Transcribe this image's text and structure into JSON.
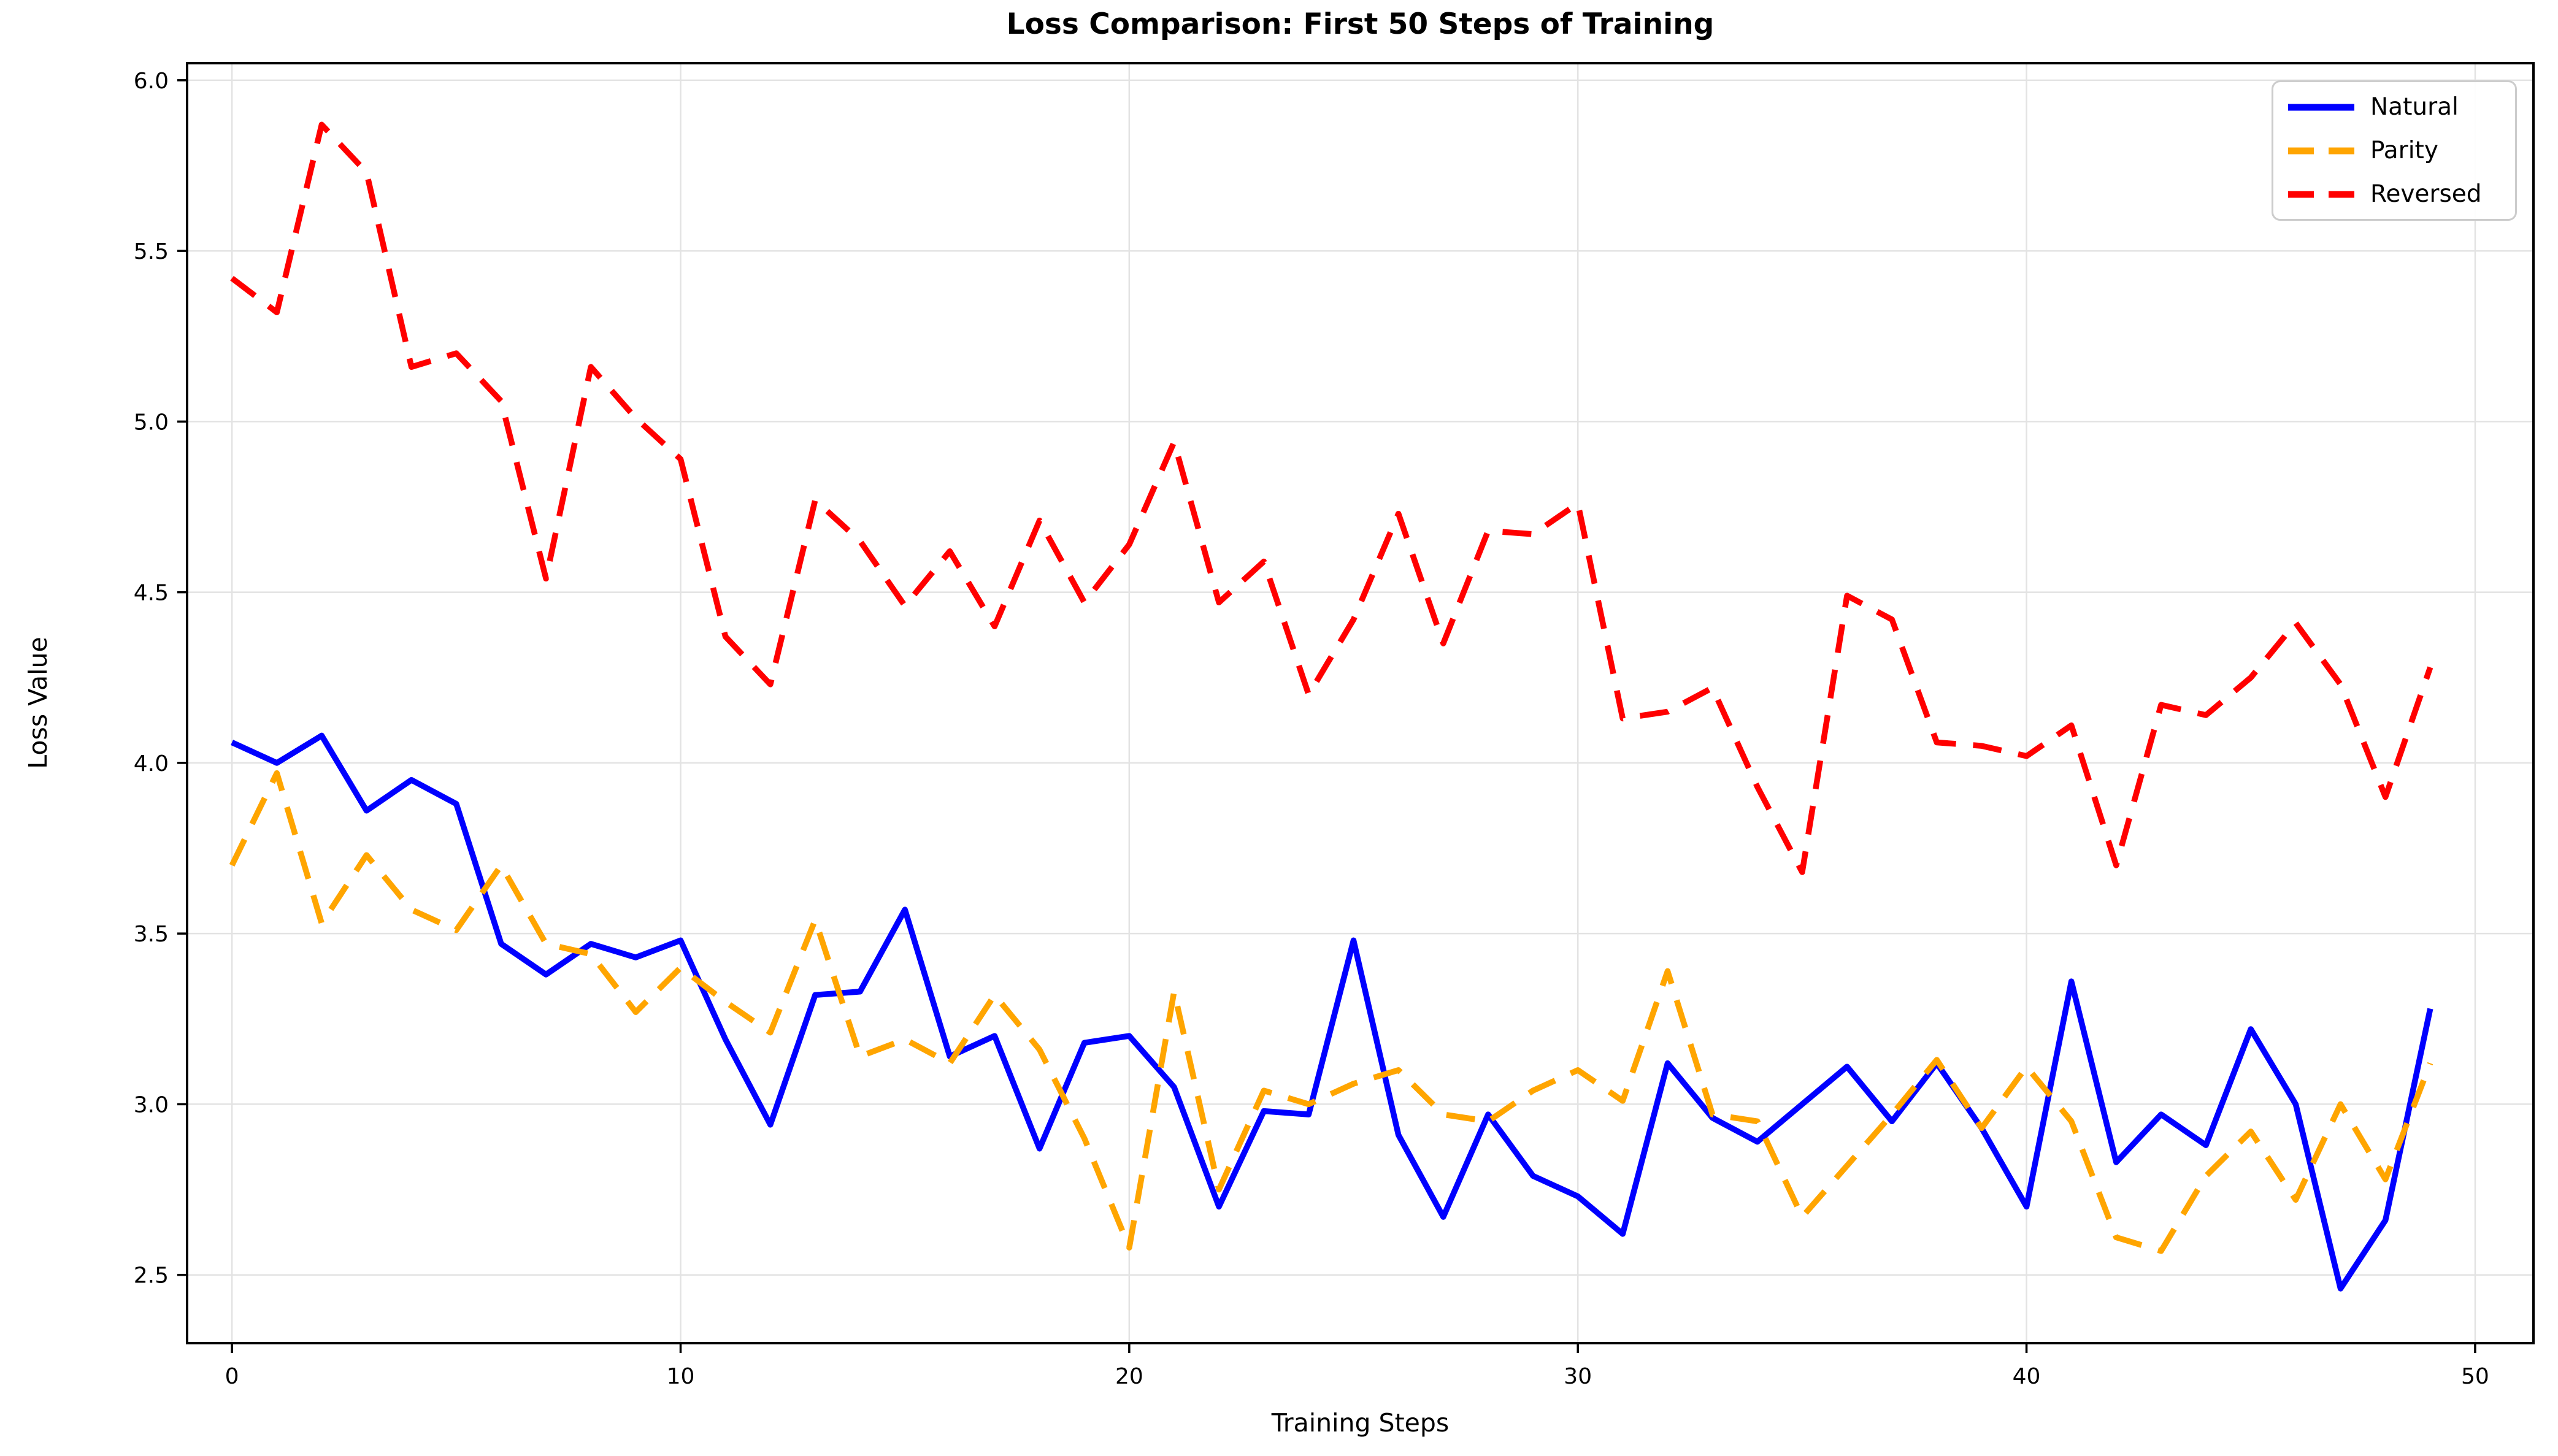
{
  "figure": {
    "title": "Loss Comparison: First 50 Steps of Training"
  },
  "chart_data": {
    "type": "line",
    "title": "Loss Comparison: First 50 Steps of Training",
    "xlabel": "Training Steps",
    "ylabel": "Loss Value",
    "grid": true,
    "legend_position": "upper right",
    "background_color": "#ffffff",
    "grid_color": "#e3e3e3",
    "xlim": [
      -1.0,
      51.3
    ],
    "ylim": [
      2.3,
      6.05
    ],
    "xticks": [
      0,
      10,
      20,
      30,
      40,
      50
    ],
    "yticks": [
      2.5,
      3.0,
      3.5,
      4.0,
      4.5,
      5.0,
      5.5,
      6.0
    ],
    "x": [
      0,
      1,
      2,
      3,
      4,
      5,
      6,
      7,
      8,
      9,
      10,
      11,
      12,
      13,
      14,
      15,
      16,
      17,
      18,
      19,
      20,
      21,
      22,
      23,
      24,
      25,
      26,
      27,
      28,
      29,
      30,
      31,
      32,
      33,
      34,
      35,
      36,
      37,
      38,
      39,
      40,
      41,
      42,
      43,
      44,
      45,
      46,
      47,
      48,
      49
    ],
    "series": [
      {
        "name": "Natural",
        "color": "#0000ff",
        "style": "solid",
        "values": [
          4.06,
          4.0,
          4.08,
          3.86,
          3.95,
          3.88,
          3.47,
          3.38,
          3.47,
          3.43,
          3.48,
          3.19,
          2.94,
          3.32,
          3.33,
          3.57,
          3.14,
          3.2,
          2.87,
          3.18,
          3.2,
          3.05,
          2.7,
          2.98,
          2.97,
          3.48,
          2.91,
          2.67,
          2.97,
          2.79,
          2.73,
          2.62,
          3.12,
          2.96,
          2.89,
          3.0,
          3.11,
          2.95,
          3.12,
          2.93,
          2.7,
          3.36,
          2.83,
          2.97,
          2.88,
          3.22,
          3.0,
          2.46,
          2.66,
          3.28
        ]
      },
      {
        "name": "Parity",
        "color": "#ffa500",
        "style": "dashed",
        "values": [
          3.7,
          3.97,
          3.53,
          3.73,
          3.57,
          3.51,
          3.7,
          3.47,
          3.44,
          3.27,
          3.4,
          3.3,
          3.21,
          3.54,
          3.14,
          3.19,
          3.12,
          3.32,
          3.16,
          2.9,
          2.58,
          3.33,
          2.75,
          3.04,
          3.0,
          3.06,
          3.1,
          2.97,
          2.95,
          3.04,
          3.1,
          3.01,
          3.39,
          2.97,
          2.95,
          2.67,
          2.82,
          2.97,
          3.13,
          2.93,
          3.11,
          2.95,
          2.61,
          2.57,
          2.79,
          2.92,
          2.72,
          3.0,
          2.78,
          3.12
        ]
      },
      {
        "name": "Reversed",
        "color": "#ff0000",
        "style": "dashed",
        "values": [
          5.42,
          5.32,
          5.87,
          5.73,
          5.16,
          5.2,
          5.06,
          4.54,
          5.16,
          5.01,
          4.89,
          4.37,
          4.23,
          4.77,
          4.65,
          4.46,
          4.62,
          4.4,
          4.71,
          4.47,
          4.64,
          4.94,
          4.47,
          4.59,
          4.2,
          4.42,
          4.73,
          4.35,
          4.68,
          4.67,
          4.76,
          4.13,
          4.15,
          4.22,
          3.93,
          3.68,
          4.49,
          4.42,
          4.06,
          4.05,
          4.02,
          4.11,
          3.7,
          4.17,
          4.14,
          4.25,
          4.41,
          4.23,
          3.9,
          4.28
        ]
      }
    ]
  }
}
